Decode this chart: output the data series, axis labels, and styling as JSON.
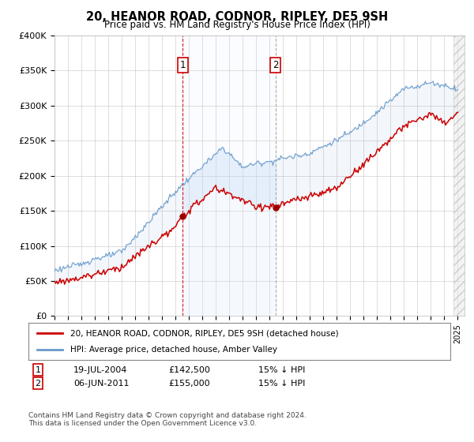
{
  "title": "20, HEANOR ROAD, CODNOR, RIPLEY, DE5 9SH",
  "subtitle": "Price paid vs. HM Land Registry's House Price Index (HPI)",
  "ylabel_ticks": [
    "£0",
    "£50K",
    "£100K",
    "£150K",
    "£200K",
    "£250K",
    "£300K",
    "£350K",
    "£400K"
  ],
  "ylim": [
    0,
    400000
  ],
  "xlim_start": 1995.0,
  "xlim_end": 2025.5,
  "sale1_year": 2004.54,
  "sale1_price": 142500,
  "sale2_year": 2011.43,
  "sale2_price": 155000,
  "sale1_label": "1",
  "sale2_label": "2",
  "legend_line1": "20, HEANOR ROAD, CODNOR, RIPLEY, DE5 9SH (detached house)",
  "legend_line2": "HPI: Average price, detached house, Amber Valley",
  "footer": "Contains HM Land Registry data © Crown copyright and database right 2024.\nThis data is licensed under the Open Government Licence v3.0.",
  "color_red": "#cc0000",
  "color_blue": "#6699cc",
  "color_shade": "#ddeeff",
  "color_dashed_red": "#cc0000",
  "color_dashed_gray": "#888888",
  "background_color": "#ffffff"
}
